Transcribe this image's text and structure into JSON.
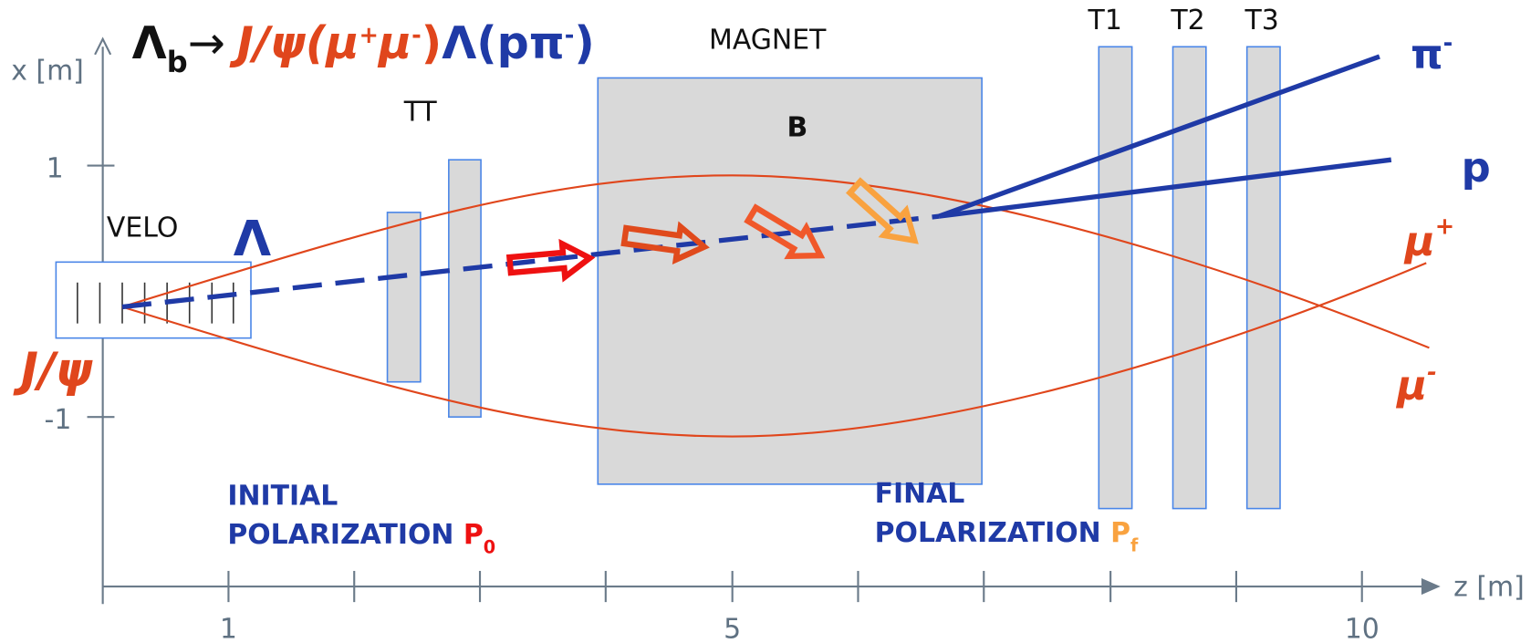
{
  "title": {
    "lambda": "Λ",
    "sub": "b",
    "arrow": "→",
    "jpsi": "J/ψ(μ",
    "plus": "+",
    "mu": "μ",
    "minus": "-",
    "close": ")",
    "lam": "Λ(pπ",
    "pim": "-",
    "close2": ")"
  },
  "axes": {
    "y_label": "x [m]",
    "x_label": "z [m]",
    "y_ticks": [
      "1",
      "-1"
    ],
    "x_ticks": [
      "1",
      "5",
      "10"
    ]
  },
  "detectors": {
    "velo": "VELO",
    "tt": "TT",
    "magnet": "MAGNET",
    "field": "B",
    "t1": "T1",
    "t2": "T2",
    "t3": "T3"
  },
  "particles": {
    "lambda": "Λ",
    "jpsi": "J/ψ",
    "pi": "π",
    "pi_charge": "-",
    "p": "p",
    "mu_plus": "μ",
    "mu_plus_charge": "+",
    "mu_minus": "μ",
    "mu_minus_charge": "-"
  },
  "initial": {
    "line1": "INITIAL",
    "line2": "POLARIZATION ",
    "symbol": "P",
    "sub": "0"
  },
  "final": {
    "line1": "FINAL",
    "line2": "POLARIZATION ",
    "symbol": "P",
    "sub": "f"
  }
}
